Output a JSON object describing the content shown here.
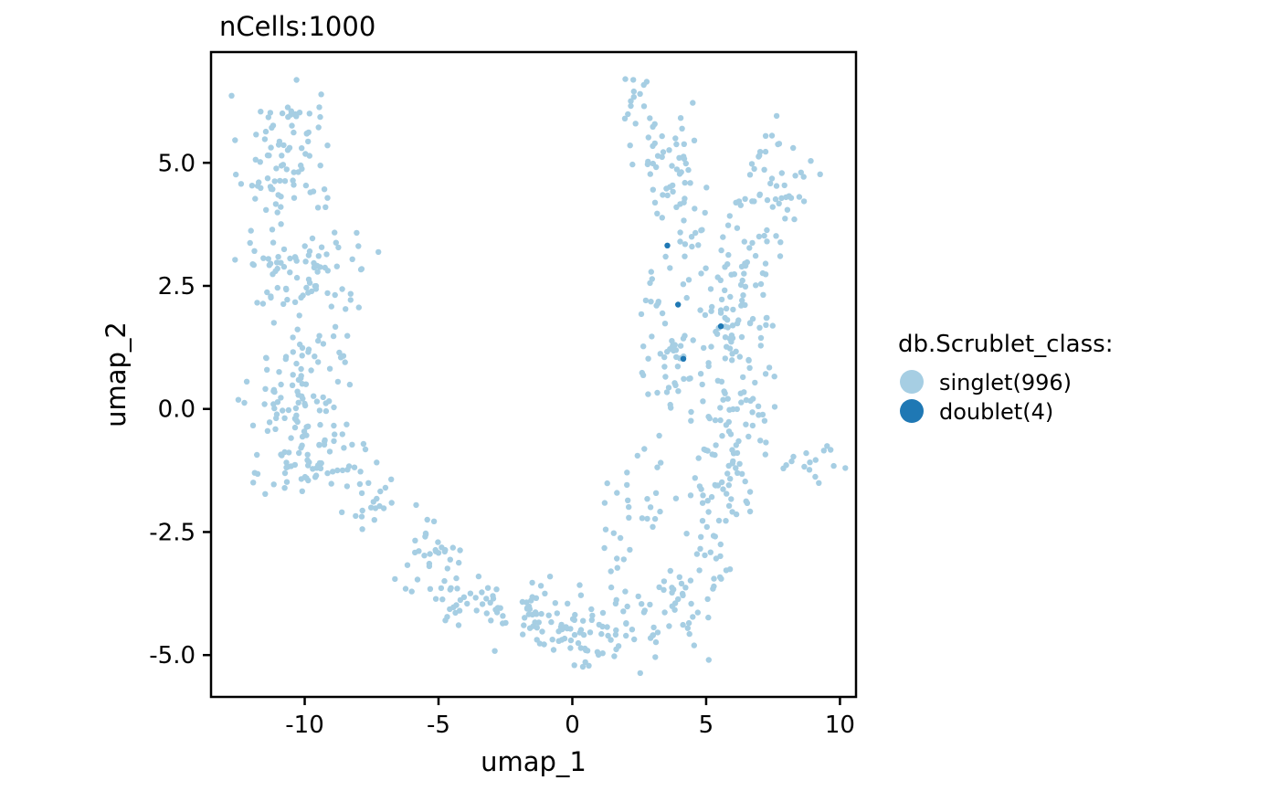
{
  "chart_data": {
    "type": "scatter",
    "title": "nCells:1000",
    "xlabel": "umap_1",
    "ylabel": "umap_2",
    "xlim": [
      -13.5,
      10.6
    ],
    "ylim": [
      -5.85,
      7.25
    ],
    "xticks": [
      -10,
      -5,
      0,
      5,
      10
    ],
    "xtick_labels": [
      "-10",
      "-5",
      "0",
      "5",
      "10"
    ],
    "yticks": [
      -5.0,
      -2.5,
      0.0,
      2.5,
      5.0
    ],
    "ytick_labels": [
      "-5.0",
      "-2.5",
      "0.0",
      "2.5",
      "5.0"
    ],
    "grid": false,
    "legend": {
      "title": "db.Scrublet_class:",
      "placement": "right",
      "entries": [
        {
          "label": "singlet(996)",
          "color": "#A6CEE3"
        },
        {
          "label": "doublet(4)",
          "color": "#1F78B4"
        }
      ]
    },
    "series": [
      {
        "name": "singlet(996)",
        "color": "#A6CEE3",
        "approximate": true,
        "clusters": [
          {
            "cx": -11.4,
            "cy": 5.0,
            "sx": 0.55,
            "sy": 0.7,
            "n": 45
          },
          {
            "cx": -10.3,
            "cy": 5.8,
            "sx": 0.45,
            "sy": 0.35,
            "n": 25
          },
          {
            "cx": -9.8,
            "cy": 4.8,
            "sx": 0.5,
            "sy": 0.5,
            "n": 15
          },
          {
            "cx": -11.3,
            "cy": 2.9,
            "sx": 0.6,
            "sy": 0.55,
            "n": 30
          },
          {
            "cx": -9.5,
            "cy": 2.8,
            "sx": 0.7,
            "sy": 0.5,
            "n": 45
          },
          {
            "cx": -8.3,
            "cy": 2.6,
            "sx": 0.3,
            "sy": 0.6,
            "n": 10
          },
          {
            "cx": -10.0,
            "cy": 0.1,
            "sx": 1.0,
            "sy": 0.8,
            "n": 115
          },
          {
            "cx": -9.6,
            "cy": -1.2,
            "sx": 0.9,
            "sy": 0.35,
            "n": 35
          },
          {
            "cx": -7.5,
            "cy": -1.9,
            "sx": 0.6,
            "sy": 0.35,
            "n": 20
          },
          {
            "cx": -5.5,
            "cy": -3.0,
            "sx": 0.7,
            "sy": 0.4,
            "n": 30
          },
          {
            "cx": -3.6,
            "cy": -3.8,
            "sx": 0.8,
            "sy": 0.35,
            "n": 35
          },
          {
            "cx": -1.5,
            "cy": -4.3,
            "sx": 0.9,
            "sy": 0.35,
            "n": 40
          },
          {
            "cx": 0.3,
            "cy": -4.4,
            "sx": 0.8,
            "sy": 0.45,
            "n": 45
          },
          {
            "cx": 2.2,
            "cy": -4.4,
            "sx": 0.8,
            "sy": 0.45,
            "n": 35
          },
          {
            "cx": 3.8,
            "cy": -4.0,
            "sx": 0.6,
            "sy": 0.45,
            "n": 25
          },
          {
            "cx": 5.2,
            "cy": -2.8,
            "sx": 0.5,
            "sy": 0.7,
            "n": 30
          },
          {
            "cx": 1.9,
            "cy": -2.1,
            "sx": 0.6,
            "sy": 0.6,
            "n": 20
          },
          {
            "cx": 3.2,
            "cy": -1.6,
            "sx": 0.4,
            "sy": 0.6,
            "n": 10
          },
          {
            "cx": 2.5,
            "cy": 5.9,
            "sx": 0.4,
            "sy": 0.5,
            "n": 25
          },
          {
            "cx": 3.8,
            "cy": 4.7,
            "sx": 0.5,
            "sy": 0.6,
            "n": 40
          },
          {
            "cx": 4.6,
            "cy": 3.8,
            "sx": 0.35,
            "sy": 0.45,
            "n": 10
          },
          {
            "cx": 7.7,
            "cy": 4.6,
            "sx": 0.55,
            "sy": 0.6,
            "n": 45
          },
          {
            "cx": 6.8,
            "cy": 3.4,
            "sx": 0.6,
            "sy": 0.5,
            "n": 20
          },
          {
            "cx": 3.6,
            "cy": 1.5,
            "sx": 0.7,
            "sy": 0.9,
            "n": 55
          },
          {
            "cx": 6.0,
            "cy": 1.6,
            "sx": 0.8,
            "sy": 0.9,
            "n": 90
          },
          {
            "cx": 5.8,
            "cy": -0.6,
            "sx": 0.55,
            "sy": 0.6,
            "n": 35
          },
          {
            "cx": 5.8,
            "cy": -1.7,
            "sx": 0.5,
            "sy": 0.5,
            "n": 25
          },
          {
            "cx": 6.8,
            "cy": 0.0,
            "sx": 0.5,
            "sy": 0.6,
            "n": 15
          },
          {
            "cx": 9.0,
            "cy": -1.1,
            "sx": 0.55,
            "sy": 0.15,
            "n": 16
          }
        ]
      },
      {
        "name": "doublet(4)",
        "color": "#1F78B4",
        "x": [
          3.55,
          3.95,
          4.15,
          5.55
        ],
        "y": [
          3.32,
          2.12,
          1.02,
          1.68
        ]
      }
    ]
  }
}
